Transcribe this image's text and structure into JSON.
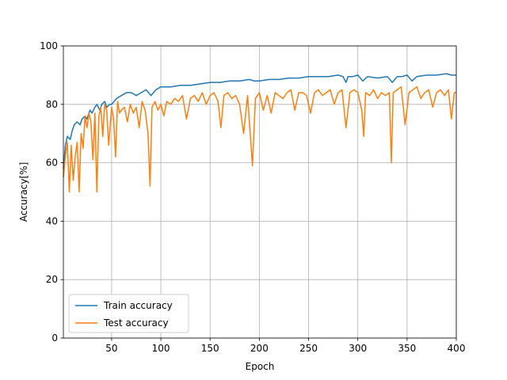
{
  "colors": {
    "train": "#1f77b4",
    "test": "#ff7f0e",
    "grid": "#b0b0b0",
    "axis": "#000000"
  },
  "chart_data": {
    "type": "line",
    "title": "",
    "xlabel": "Epoch",
    "ylabel": "Accuracy[%]",
    "xlim": [
      1,
      400
    ],
    "ylim": [
      0,
      100
    ],
    "xticks": [
      50,
      100,
      150,
      200,
      250,
      300,
      350,
      400
    ],
    "yticks": [
      0,
      20,
      40,
      60,
      80,
      100
    ],
    "grid": true,
    "legend_position": "lower-left",
    "series": [
      {
        "name": "Train accuracy",
        "color": "#1f77b4",
        "x": [
          1,
          3,
          5,
          8,
          10,
          12,
          15,
          18,
          20,
          23,
          25,
          28,
          30,
          33,
          35,
          38,
          40,
          43,
          45,
          48,
          50,
          55,
          60,
          65,
          70,
          75,
          80,
          85,
          90,
          95,
          100,
          110,
          120,
          130,
          140,
          150,
          160,
          170,
          180,
          190,
          195,
          200,
          210,
          220,
          230,
          240,
          250,
          260,
          270,
          280,
          285,
          288,
          290,
          295,
          300,
          305,
          310,
          320,
          330,
          335,
          340,
          345,
          350,
          355,
          360,
          370,
          380,
          390,
          395,
          400
        ],
        "values": [
          58,
          66,
          69,
          68,
          71,
          73,
          74,
          73,
          75,
          76,
          75,
          78,
          77,
          79,
          80,
          78,
          80,
          81,
          79,
          80,
          80,
          82,
          83,
          84,
          84,
          83,
          84,
          85,
          83,
          85,
          86,
          86,
          86.5,
          86.5,
          87,
          87.5,
          87.5,
          88,
          88,
          88.5,
          88,
          88,
          88.5,
          88.5,
          89,
          89,
          89.5,
          89.5,
          89.5,
          90,
          89.5,
          87.5,
          89.5,
          89.5,
          90,
          88,
          89.5,
          89,
          89.5,
          87.5,
          89.5,
          89.5,
          90,
          88,
          89.5,
          90,
          90,
          90.5,
          90,
          90
        ]
      },
      {
        "name": "Test accuracy",
        "color": "#ff7f0e",
        "x": [
          1,
          3,
          5,
          7,
          9,
          11,
          13,
          15,
          17,
          19,
          21,
          23,
          25,
          27,
          29,
          31,
          33,
          35,
          37,
          39,
          41,
          43,
          45,
          47,
          50,
          52,
          54,
          56,
          58,
          60,
          63,
          66,
          69,
          72,
          75,
          78,
          81,
          84,
          87,
          89,
          91,
          94,
          97,
          100,
          103,
          106,
          110,
          114,
          118,
          122,
          126,
          130,
          134,
          138,
          142,
          146,
          150,
          154,
          158,
          161,
          164,
          168,
          172,
          176,
          180,
          184,
          188,
          193,
          196,
          200,
          204,
          208,
          212,
          216,
          220,
          224,
          228,
          232,
          236,
          240,
          244,
          248,
          252,
          256,
          260,
          264,
          268,
          272,
          276,
          280,
          284,
          288,
          292,
          296,
          300,
          304,
          306,
          308,
          312,
          316,
          320,
          324,
          328,
          332,
          334,
          336,
          340,
          344,
          348,
          352,
          356,
          360,
          364,
          368,
          372,
          376,
          380,
          384,
          388,
          392,
          395,
          398,
          400
        ],
        "values": [
          55,
          62,
          67,
          50,
          66,
          54,
          62,
          67,
          50,
          70,
          65,
          76,
          72,
          77,
          74,
          61,
          77,
          50,
          76,
          79,
          69,
          80,
          78,
          66,
          79,
          75,
          62,
          81,
          77,
          78,
          79,
          74,
          80,
          77,
          79,
          72,
          81,
          78,
          70,
          52,
          79,
          81,
          78,
          80,
          76,
          81,
          80,
          82,
          81,
          83,
          75,
          82,
          83,
          81,
          84,
          80,
          83,
          84,
          81,
          72,
          83,
          84,
          82,
          83,
          80,
          70,
          83,
          59,
          82,
          84,
          78,
          83,
          77,
          84,
          83,
          82,
          84,
          85,
          78,
          84,
          84,
          83,
          77,
          84,
          85,
          83,
          84,
          85,
          80,
          84,
          85,
          72,
          84,
          85,
          84,
          78,
          69,
          84,
          83,
          85,
          82,
          84,
          83,
          84,
          60,
          84,
          85,
          86,
          73,
          84,
          85,
          86,
          82,
          84,
          85,
          79,
          84,
          85,
          83,
          85,
          75,
          84,
          84
        ]
      }
    ]
  }
}
